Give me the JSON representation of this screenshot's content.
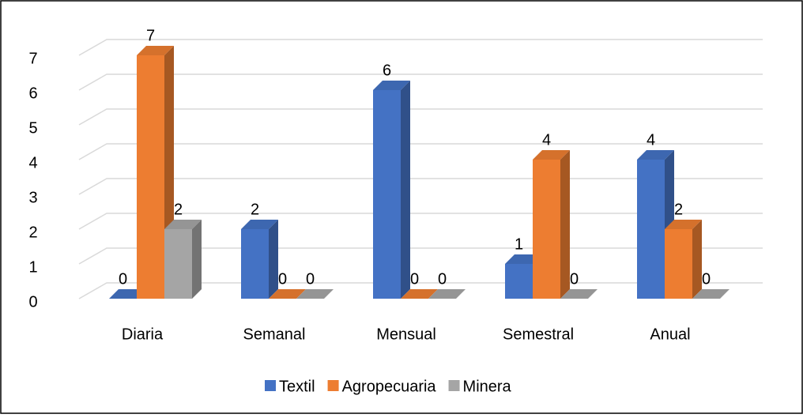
{
  "chart_data": {
    "type": "bar3d",
    "categories": [
      "Diaria",
      "Semanal",
      "Mensual",
      "Semestral",
      "Anual"
    ],
    "series": [
      {
        "name": "Textil",
        "color": "#4472c4",
        "values": [
          0,
          2,
          6,
          1,
          4
        ]
      },
      {
        "name": "Agropecuaria",
        "color": "#ed7d31",
        "values": [
          7,
          0,
          0,
          4,
          2
        ]
      },
      {
        "name": "Minera",
        "color": "#a5a5a5",
        "values": [
          2,
          0,
          0,
          0,
          0
        ]
      }
    ],
    "ylim": [
      0,
      7
    ],
    "yticks": [
      0,
      1,
      2,
      3,
      4,
      5,
      6,
      7
    ],
    "grid": true,
    "legend": "bottom"
  }
}
